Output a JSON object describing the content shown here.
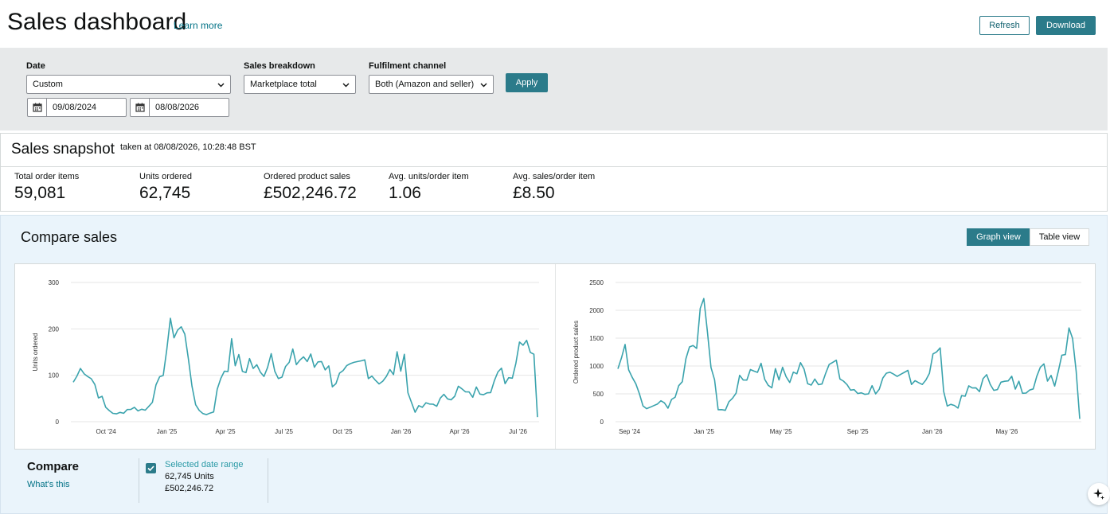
{
  "header": {
    "title": "Sales dashboard",
    "learn_more": "Learn more",
    "refresh_label": "Refresh",
    "download_label": "Download"
  },
  "filters": {
    "date_label": "Date",
    "date_select": "Custom",
    "start_date": "09/08/2024",
    "end_date": "08/08/2026",
    "breakdown_label": "Sales breakdown",
    "breakdown_select": "Marketplace total",
    "channel_label": "Fulfilment channel",
    "channel_select": "Both (Amazon and seller)",
    "apply_label": "Apply"
  },
  "snapshot": {
    "title": "Sales snapshot",
    "taken_at": "taken at 08/08/2026, 10:28:48 BST",
    "metrics": [
      {
        "label": "Total order items",
        "value": "59,081"
      },
      {
        "label": "Units ordered",
        "value": "62,745"
      },
      {
        "label": "Ordered product sales",
        "value": "£502,246.72"
      },
      {
        "label": "Avg. units/order item",
        "value": "1.06"
      },
      {
        "label": "Avg. sales/order item",
        "value": "£8.50"
      }
    ]
  },
  "compare": {
    "title": "Compare sales",
    "graph_view": "Graph view",
    "table_view": "Table view",
    "compare_label": "Compare",
    "whats_this": "What's this",
    "legend_title": "Selected date range",
    "legend_units": "62,745 Units",
    "legend_sales": "£502,246.72"
  },
  "colors": {
    "accent": "#2b7b8a",
    "line": "#3aa3ad",
    "link": "#007185"
  },
  "chart_data": [
    {
      "type": "line",
      "ylabel": "Units ordered",
      "ylim": [
        0,
        300
      ],
      "yticks": [
        0,
        100,
        200,
        300
      ],
      "xticks": [
        "Oct '24",
        "Jan '25",
        "Apr '25",
        "Jul '25",
        "Oct '25",
        "Jan '26",
        "Apr '26",
        "Jul '26"
      ],
      "grid": true,
      "anchors": [
        [
          0,
          85
        ],
        [
          3,
          125
        ],
        [
          6,
          80
        ],
        [
          9,
          30
        ],
        [
          12,
          15
        ],
        [
          16,
          30
        ],
        [
          20,
          25
        ],
        [
          24,
          80
        ],
        [
          26,
          160
        ],
        [
          28,
          210
        ],
        [
          30,
          200
        ],
        [
          32,
          150
        ],
        [
          34,
          30
        ],
        [
          37,
          15
        ],
        [
          39,
          25
        ],
        [
          41,
          100
        ],
        [
          44,
          150
        ],
        [
          47,
          110
        ],
        [
          49,
          130
        ],
        [
          52,
          100
        ],
        [
          55,
          150
        ],
        [
          58,
          100
        ],
        [
          61,
          130
        ],
        [
          64,
          140
        ],
        [
          67,
          120
        ],
        [
          69,
          145
        ],
        [
          72,
          90
        ],
        [
          75,
          95
        ],
        [
          78,
          110
        ],
        [
          81,
          130
        ],
        [
          84,
          95
        ],
        [
          87,
          90
        ],
        [
          90,
          125
        ],
        [
          92,
          155
        ],
        [
          93,
          60
        ],
        [
          95,
          25
        ],
        [
          98,
          35
        ],
        [
          101,
          40
        ],
        [
          104,
          55
        ],
        [
          107,
          70
        ],
        [
          110,
          55
        ],
        [
          113,
          70
        ],
        [
          116,
          80
        ],
        [
          119,
          100
        ],
        [
          121,
          95
        ],
        [
          123,
          140
        ],
        [
          125,
          205
        ],
        [
          127,
          170
        ],
        [
          128,
          160
        ],
        [
          129,
          10
        ]
      ],
      "points": 130
    },
    {
      "type": "line",
      "ylabel": "Ordered product sales",
      "ylim": [
        0,
        2500
      ],
      "yticks": [
        0,
        500,
        1000,
        1500,
        2000,
        2500
      ],
      "xticks": [
        "Sep '24",
        "Jan '25",
        "May '25",
        "Sep '25",
        "Jan '26",
        "May '26"
      ],
      "grid": true,
      "anchors": [
        [
          0,
          950
        ],
        [
          2,
          1350
        ],
        [
          4,
          900
        ],
        [
          6,
          500
        ],
        [
          8,
          200
        ],
        [
          11,
          350
        ],
        [
          14,
          300
        ],
        [
          17,
          600
        ],
        [
          19,
          1100
        ],
        [
          21,
          1600
        ],
        [
          23,
          1700
        ],
        [
          25,
          1950
        ],
        [
          26,
          1000
        ],
        [
          28,
          250
        ],
        [
          30,
          200
        ],
        [
          33,
          600
        ],
        [
          36,
          850
        ],
        [
          39,
          1050
        ],
        [
          42,
          700
        ],
        [
          45,
          850
        ],
        [
          48,
          800
        ],
        [
          51,
          950
        ],
        [
          54,
          750
        ],
        [
          57,
          850
        ],
        [
          60,
          1000
        ],
        [
          63,
          750
        ],
        [
          66,
          500
        ],
        [
          69,
          550
        ],
        [
          72,
          600
        ],
        [
          75,
          750
        ],
        [
          78,
          700
        ],
        [
          81,
          900
        ],
        [
          84,
          750
        ],
        [
          87,
          800
        ],
        [
          89,
          1400
        ],
        [
          90,
          1100
        ],
        [
          92,
          300
        ],
        [
          95,
          300
        ],
        [
          98,
          550
        ],
        [
          101,
          650
        ],
        [
          104,
          750
        ],
        [
          107,
          650
        ],
        [
          110,
          700
        ],
        [
          113,
          600
        ],
        [
          116,
          750
        ],
        [
          119,
          900
        ],
        [
          122,
          800
        ],
        [
          124,
          1200
        ],
        [
          126,
          1800
        ],
        [
          127,
          1700
        ],
        [
          128,
          1000
        ],
        [
          129,
          50
        ]
      ],
      "points": 130
    }
  ]
}
